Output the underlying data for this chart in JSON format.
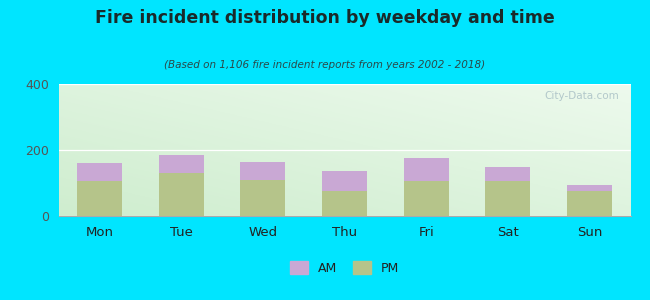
{
  "days": [
    "Mon",
    "Tue",
    "Wed",
    "Thu",
    "Fri",
    "Sat",
    "Sun"
  ],
  "pm_values": [
    105,
    130,
    110,
    75,
    105,
    105,
    75
  ],
  "am_values": [
    55,
    55,
    55,
    60,
    70,
    45,
    20
  ],
  "am_color": "#c9a8d4",
  "pm_color": "#b5c48a",
  "title": "Fire incident distribution by weekday and time",
  "subtitle": "(Based on 1,106 fire incident reports from years 2002 - 2018)",
  "ylim": [
    0,
    400
  ],
  "yticks": [
    0,
    200,
    400
  ],
  "background_outer": "#00e5ff",
  "watermark": "City-Data.com",
  "title_color": "#1a2a2a",
  "subtitle_color": "#2a4a4a"
}
